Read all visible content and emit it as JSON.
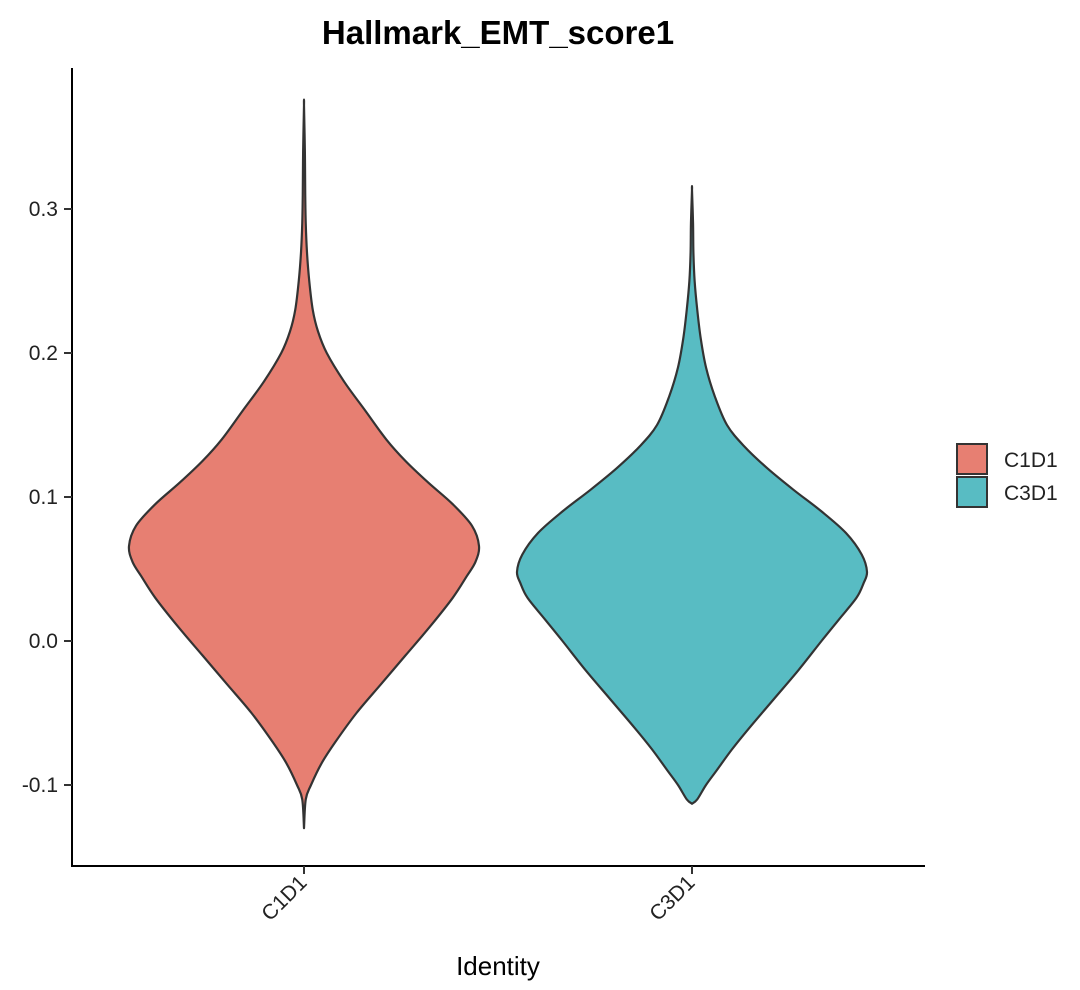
{
  "chart_data": {
    "type": "violin",
    "title": "Hallmark_EMT_score1",
    "xlabel": "Identity",
    "ylabel": "",
    "categories": [
      "C1D1",
      "C3D1"
    ],
    "y_ticks": [
      -0.1,
      0.0,
      0.1,
      0.2,
      0.3
    ],
    "y_tick_labels": [
      "-0.1",
      "0.0",
      "0.1",
      "0.2",
      "0.3"
    ],
    "ylim": [
      -0.155,
      0.395
    ],
    "grid": false,
    "legend": {
      "title": "",
      "placement": "right"
    },
    "series": [
      {
        "name": "C1D1",
        "color": "#E77F72",
        "min": -0.13,
        "max": 0.372,
        "mode": 0.066,
        "density_profile": [
          [
            -0.13,
            0.0
          ],
          [
            -0.11,
            0.01
          ],
          [
            -0.1,
            0.04
          ],
          [
            -0.085,
            0.1
          ],
          [
            -0.07,
            0.18
          ],
          [
            -0.05,
            0.3
          ],
          [
            -0.03,
            0.44
          ],
          [
            -0.01,
            0.58
          ],
          [
            0.01,
            0.72
          ],
          [
            0.03,
            0.85
          ],
          [
            0.045,
            0.93
          ],
          [
            0.055,
            0.98
          ],
          [
            0.066,
            1.0
          ],
          [
            0.08,
            0.96
          ],
          [
            0.095,
            0.85
          ],
          [
            0.11,
            0.71
          ],
          [
            0.125,
            0.58
          ],
          [
            0.14,
            0.47
          ],
          [
            0.16,
            0.35
          ],
          [
            0.18,
            0.23
          ],
          [
            0.2,
            0.13
          ],
          [
            0.215,
            0.08
          ],
          [
            0.23,
            0.05
          ],
          [
            0.25,
            0.03
          ],
          [
            0.27,
            0.017
          ],
          [
            0.29,
            0.01
          ],
          [
            0.31,
            0.007
          ],
          [
            0.34,
            0.005
          ],
          [
            0.372,
            0.0
          ]
        ]
      },
      {
        "name": "C3D1",
        "color": "#58BCC3",
        "min": -0.113,
        "max": 0.313,
        "mode": 0.048,
        "density_profile": [
          [
            -0.113,
            0.0
          ],
          [
            -0.11,
            0.03
          ],
          [
            -0.1,
            0.08
          ],
          [
            -0.09,
            0.14
          ],
          [
            -0.075,
            0.23
          ],
          [
            -0.06,
            0.33
          ],
          [
            -0.04,
            0.47
          ],
          [
            -0.02,
            0.61
          ],
          [
            0.0,
            0.74
          ],
          [
            0.015,
            0.84
          ],
          [
            0.03,
            0.94
          ],
          [
            0.04,
            0.98
          ],
          [
            0.048,
            1.0
          ],
          [
            0.06,
            0.97
          ],
          [
            0.075,
            0.88
          ],
          [
            0.09,
            0.74
          ],
          [
            0.105,
            0.58
          ],
          [
            0.12,
            0.43
          ],
          [
            0.135,
            0.3
          ],
          [
            0.15,
            0.2
          ],
          [
            0.17,
            0.13
          ],
          [
            0.19,
            0.08
          ],
          [
            0.21,
            0.05
          ],
          [
            0.23,
            0.03
          ],
          [
            0.25,
            0.015
          ],
          [
            0.27,
            0.008
          ],
          [
            0.29,
            0.006
          ],
          [
            0.313,
            0.0
          ]
        ]
      }
    ]
  }
}
